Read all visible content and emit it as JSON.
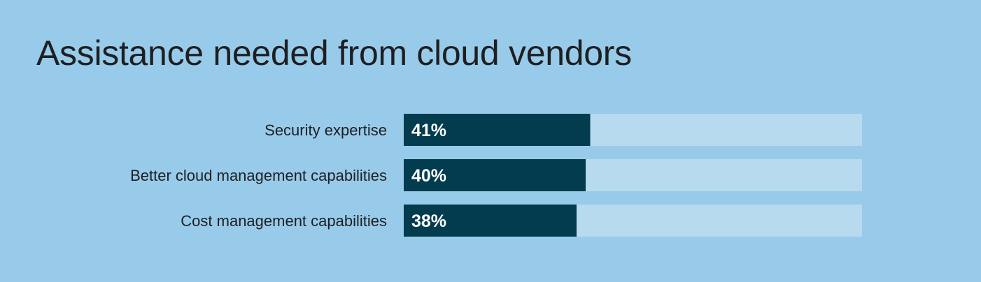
{
  "colors": {
    "background": "#98cbea",
    "track": "#b7daef",
    "bar": "#033c4e",
    "text": "#1e1f22",
    "value_text": "#ffffff"
  },
  "chart_data": {
    "type": "bar",
    "orientation": "horizontal",
    "title": "Assistance needed from cloud vendors",
    "categories": [
      "Security expertise",
      "Better cloud management capabilities",
      "Cost management capabilities"
    ],
    "values": [
      41,
      40,
      38
    ],
    "value_labels": [
      "41%",
      "40%",
      "38%"
    ],
    "unit": "%",
    "xlim": [
      0,
      100
    ],
    "grid": false,
    "legend": "none"
  }
}
